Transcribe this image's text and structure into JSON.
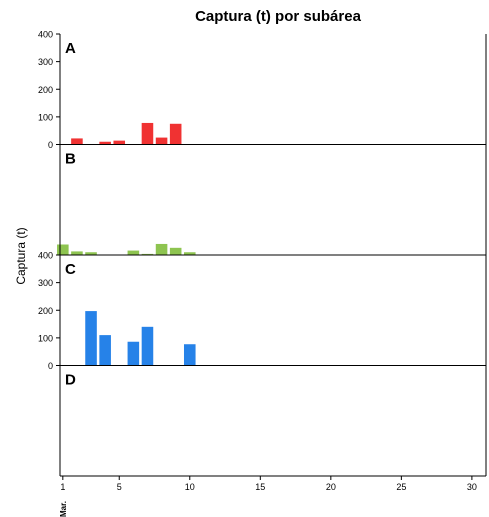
{
  "chart_data": {
    "type": "bar",
    "title": "Captura (t) por subárea",
    "ylabel": "Captura (t)",
    "xlabel": "",
    "x_month_label": "Mar.",
    "x_ticks": [
      1,
      5,
      10,
      15,
      20,
      25,
      30
    ],
    "xlim": [
      0.8,
      31
    ],
    "ylim": [
      0,
      400
    ],
    "y_ticks": [
      0,
      100,
      200,
      300,
      400
    ],
    "grid": false,
    "panels": [
      {
        "label": "A",
        "color": "#f03232",
        "show_y_ticks": true,
        "x": [
          2,
          4,
          5,
          7,
          8,
          9
        ],
        "values": [
          22,
          10,
          14,
          78,
          25,
          75
        ]
      },
      {
        "label": "B",
        "color": "#8ec450",
        "show_y_ticks": false,
        "x": [
          1,
          2,
          3,
          6,
          7,
          8,
          9,
          10
        ],
        "values": [
          38,
          13,
          10,
          16,
          4,
          40,
          26,
          10
        ]
      },
      {
        "label": "C",
        "color": "#2682e8",
        "show_y_ticks": true,
        "x": [
          3,
          4,
          6,
          7,
          10
        ],
        "values": [
          197,
          110,
          86,
          140,
          77
        ]
      },
      {
        "label": "D",
        "color": "#888888",
        "show_y_ticks": false,
        "x": [],
        "values": []
      }
    ]
  }
}
